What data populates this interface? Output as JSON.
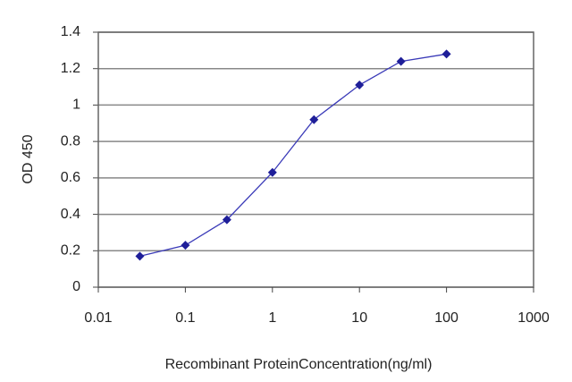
{
  "chart_data": {
    "type": "line",
    "x_label": "Recombinant ProteinConcentration(ng/ml)",
    "y_label": "OD 450",
    "x": [
      0.03,
      0.1,
      0.3,
      1,
      3,
      10,
      30,
      100
    ],
    "series": [
      {
        "color": "#1f1f99",
        "values": [
          0.17,
          0.23,
          0.37,
          0.63,
          0.92,
          1.11,
          1.24,
          1.28
        ]
      }
    ],
    "xscale": "log",
    "xlim": [
      0.01,
      1000
    ],
    "xticks": [
      0.01,
      0.1,
      1,
      10,
      100,
      1000
    ],
    "ylim": [
      0,
      1.4
    ],
    "yticks": [
      0,
      0.2,
      0.4,
      0.6,
      0.8,
      1,
      1.2,
      1.4
    ],
    "grid": true
  }
}
